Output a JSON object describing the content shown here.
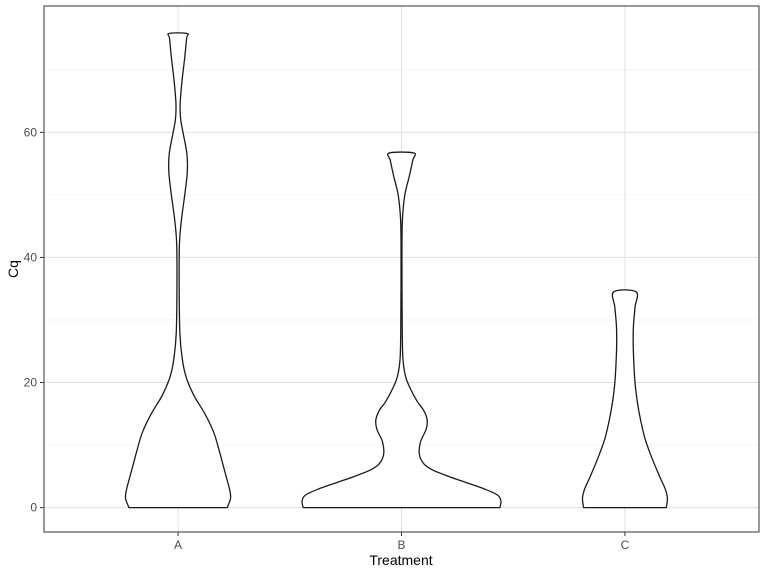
{
  "chart_data": {
    "type": "violin",
    "title": "",
    "xlabel": "Treatment",
    "ylabel": "Cq",
    "categories": [
      "A",
      "B",
      "C"
    ],
    "ylim": [
      -3.9,
      80.2
    ],
    "yticks": [
      0,
      20,
      40,
      60
    ],
    "grid": true,
    "colors": {
      "outline": "#1a1a1a",
      "fill": "#ffffff",
      "grid_major": "#e0e0e0",
      "grid_minor": "#f0f0f0",
      "panel_border": "#333333"
    },
    "violins": [
      {
        "category": "A",
        "y_range": [
          0,
          75.8
        ],
        "half_width_profile": [
          [
            0,
            0.22
          ],
          [
            1.5,
            0.235
          ],
          [
            3,
            0.23
          ],
          [
            5,
            0.215
          ],
          [
            7,
            0.2
          ],
          [
            9,
            0.185
          ],
          [
            12,
            0.16
          ],
          [
            15,
            0.12
          ],
          [
            18,
            0.07
          ],
          [
            21,
            0.035
          ],
          [
            24,
            0.018
          ],
          [
            28,
            0.008
          ],
          [
            35,
            0.005
          ],
          [
            42,
            0.006
          ],
          [
            46,
            0.015
          ],
          [
            50,
            0.03
          ],
          [
            53,
            0.04
          ],
          [
            55,
            0.042
          ],
          [
            57,
            0.038
          ],
          [
            60,
            0.022
          ],
          [
            62,
            0.012
          ],
          [
            64,
            0.009
          ],
          [
            66,
            0.012
          ],
          [
            69,
            0.02
          ],
          [
            72,
            0.03
          ],
          [
            75,
            0.038
          ],
          [
            75.8,
            0.04
          ]
        ]
      },
      {
        "category": "B",
        "y_range": [
          0,
          56.7
        ],
        "half_width_profile": [
          [
            0,
            0.44
          ],
          [
            1,
            0.445
          ],
          [
            2,
            0.43
          ],
          [
            3,
            0.37
          ],
          [
            4,
            0.29
          ],
          [
            5,
            0.21
          ],
          [
            6,
            0.14
          ],
          [
            7,
            0.1
          ],
          [
            8.5,
            0.08
          ],
          [
            10.5,
            0.085
          ],
          [
            12.5,
            0.11
          ],
          [
            14,
            0.115
          ],
          [
            15.5,
            0.1
          ],
          [
            17,
            0.07
          ],
          [
            19,
            0.04
          ],
          [
            21,
            0.018
          ],
          [
            24,
            0.006
          ],
          [
            30,
            0.003
          ],
          [
            40,
            0.002
          ],
          [
            46,
            0.004
          ],
          [
            50,
            0.015
          ],
          [
            53,
            0.035
          ],
          [
            55.5,
            0.05
          ],
          [
            56.7,
            0.055
          ]
        ]
      },
      {
        "category": "C",
        "y_range": [
          0,
          34.5
        ],
        "half_width_profile": [
          [
            0,
            0.185
          ],
          [
            1.5,
            0.19
          ],
          [
            3,
            0.18
          ],
          [
            5,
            0.155
          ],
          [
            8,
            0.12
          ],
          [
            11,
            0.09
          ],
          [
            14,
            0.07
          ],
          [
            17,
            0.055
          ],
          [
            20,
            0.045
          ],
          [
            23,
            0.04
          ],
          [
            26,
            0.037
          ],
          [
            29,
            0.038
          ],
          [
            32,
            0.045
          ],
          [
            34.5,
            0.05
          ]
        ]
      }
    ]
  }
}
